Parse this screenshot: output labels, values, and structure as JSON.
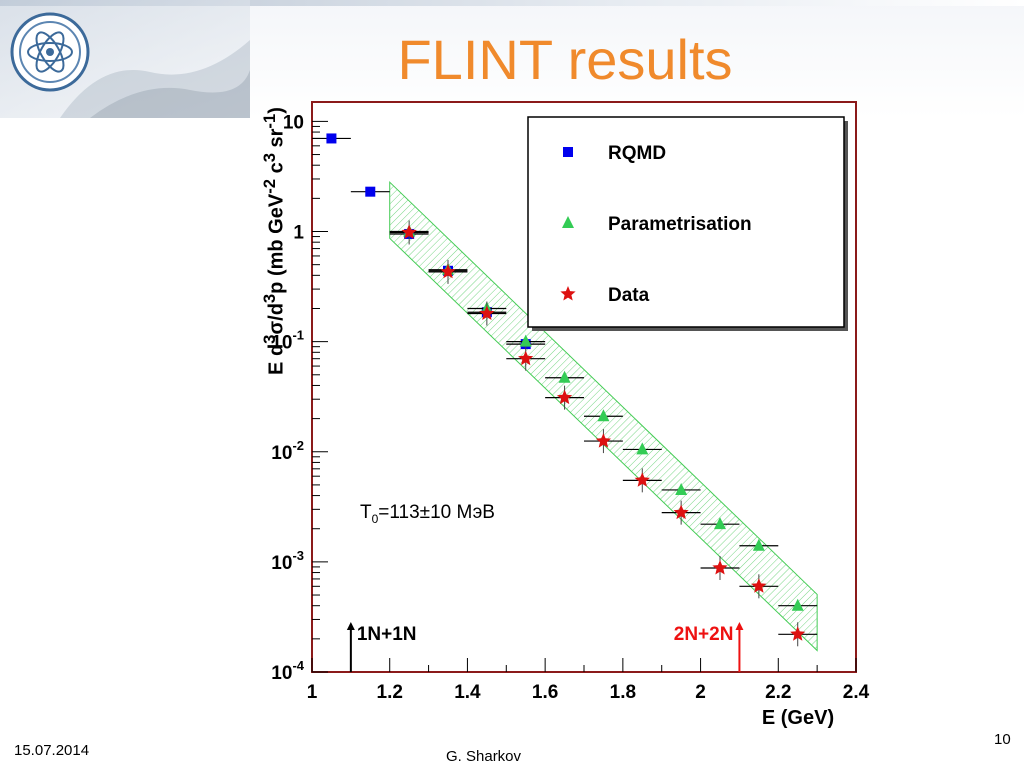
{
  "slide": {
    "title": "FLINT results",
    "date": "15.07.2014",
    "author": "G. Sharkov",
    "page": "10"
  },
  "annotation": {
    "t0": "T0=113±10 МэВ",
    "t0_main": "T",
    "t0_sub": "0",
    "t0_rest": "=113±10 МэВ"
  },
  "chart_data": {
    "type": "scatter",
    "xlabel": "E (GeV)",
    "ylabel": "E d3σ/d3p (mb GeV-2 c3 sr-1)",
    "xlim": [
      1,
      2.4
    ],
    "ylim": [
      0.0001,
      15
    ],
    "yscale": "log",
    "x_ticks": [
      "1",
      "1.2",
      "1.4",
      "1.6",
      "1.8",
      "2",
      "2.2",
      "2.4"
    ],
    "y_ticks": [
      "10",
      "1",
      "10-1",
      "10-2",
      "10-3",
      "10-4"
    ],
    "legend": {
      "position": "top-right",
      "entries": [
        "RQMD",
        "Parametrisation",
        "Data"
      ]
    },
    "series": [
      {
        "name": "RQMD",
        "marker": "square",
        "color": "#0000ee",
        "x": [
          1.05,
          1.15,
          1.25,
          1.35,
          1.45,
          1.55
        ],
        "y": [
          7.0,
          2.3,
          0.95,
          0.44,
          0.185,
          0.095
        ]
      },
      {
        "name": "Parametrisation",
        "marker": "triangle",
        "color": "#33cc55",
        "x": [
          1.25,
          1.35,
          1.45,
          1.55,
          1.65,
          1.75,
          1.85,
          1.95,
          2.05,
          2.15,
          2.25
        ],
        "y": [
          1.0,
          0.45,
          0.2,
          0.1,
          0.047,
          0.021,
          0.0105,
          0.0045,
          0.0022,
          0.0014,
          0.0004
        ]
      },
      {
        "name": "Data",
        "marker": "star",
        "color": "#dd1111",
        "x": [
          1.25,
          1.35,
          1.45,
          1.55,
          1.65,
          1.75,
          1.85,
          1.95,
          2.05,
          2.15,
          2.25
        ],
        "y": [
          0.98,
          0.43,
          0.18,
          0.07,
          0.031,
          0.0125,
          0.0055,
          0.0028,
          0.00088,
          0.0006,
          0.00022
        ]
      }
    ],
    "band": {
      "label": "Parametrisation band",
      "x": [
        1.2,
        2.3
      ],
      "y_center": [
        1.55,
        0.00028
      ],
      "y_upper_factor": 1.35,
      "y_lower_factor": 0.75
    },
    "thresholds": [
      {
        "label": "1N+1N",
        "x": 1.1,
        "color": "#000000"
      },
      {
        "label": "2N+2N",
        "x": 2.1,
        "color": "#ee1111"
      }
    ]
  },
  "colors": {
    "title": "#f08a2c",
    "frame": "#8b1a1a",
    "band": "#44cc55"
  }
}
